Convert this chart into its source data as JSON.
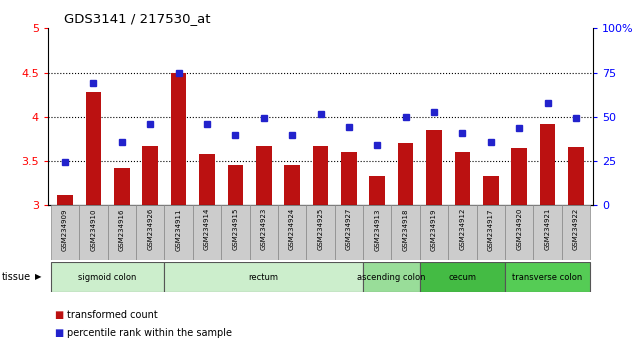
{
  "title": "GDS3141 / 217530_at",
  "samples": [
    "GSM234909",
    "GSM234910",
    "GSM234916",
    "GSM234926",
    "GSM234911",
    "GSM234914",
    "GSM234915",
    "GSM234923",
    "GSM234924",
    "GSM234925",
    "GSM234927",
    "GSM234913",
    "GSM234918",
    "GSM234919",
    "GSM234912",
    "GSM234917",
    "GSM234920",
    "GSM234921",
    "GSM234922"
  ],
  "bar_values": [
    3.12,
    4.28,
    3.42,
    3.67,
    4.49,
    3.58,
    3.46,
    3.67,
    3.46,
    3.67,
    3.6,
    3.33,
    3.7,
    3.85,
    3.6,
    3.33,
    3.65,
    3.92,
    3.66
  ],
  "dot_values": [
    3.49,
    4.38,
    3.72,
    3.92,
    4.49,
    3.92,
    3.8,
    3.99,
    3.8,
    4.03,
    3.88,
    3.68,
    4.0,
    4.05,
    3.82,
    3.72,
    3.87,
    4.16,
    3.99
  ],
  "ylim_left": [
    3.0,
    5.0
  ],
  "yticks_left": [
    3.0,
    3.5,
    4.0,
    4.5,
    5.0
  ],
  "ytick_labels_left": [
    "3",
    "3.5",
    "4",
    "4.5",
    "5"
  ],
  "ytick_labels_right": [
    "0",
    "25",
    "50",
    "75",
    "100%"
  ],
  "dotted_lines": [
    3.5,
    4.0,
    4.5
  ],
  "bar_color": "#BB1111",
  "dot_color": "#2222CC",
  "tissue_groups": [
    {
      "label": "sigmoid colon",
      "start": 0,
      "end": 4
    },
    {
      "label": "rectum",
      "start": 4,
      "end": 11
    },
    {
      "label": "ascending colon",
      "start": 11,
      "end": 13
    },
    {
      "label": "cecum",
      "start": 13,
      "end": 16
    },
    {
      "label": "transverse colon",
      "start": 16,
      "end": 19
    }
  ],
  "tissue_colors": {
    "sigmoid colon": "#cceecc",
    "rectum": "#cceecc",
    "ascending colon": "#99dd99",
    "cecum": "#44bb44",
    "transverse colon": "#55cc55"
  },
  "legend_items": [
    {
      "label": "transformed count",
      "color": "#BB1111"
    },
    {
      "label": "percentile rank within the sample",
      "color": "#2222CC"
    }
  ],
  "tissue_label": "tissue"
}
